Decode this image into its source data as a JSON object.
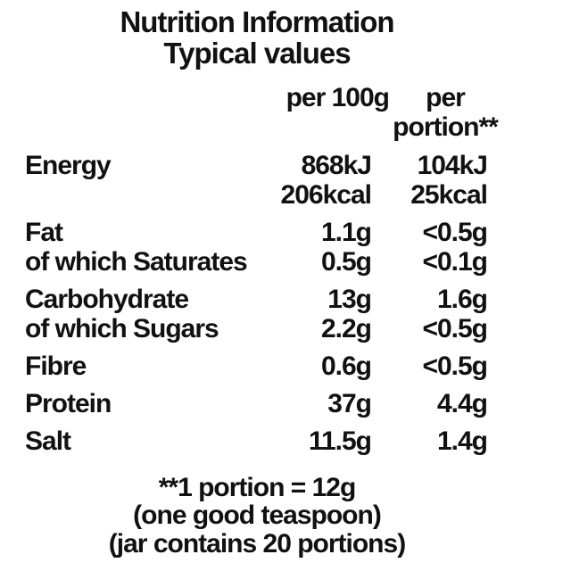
{
  "title": {
    "line1": "Nutrition Information",
    "line2": "Typical values"
  },
  "columns": {
    "per_100g": "per 100g",
    "per_portion_line1": "per",
    "per_portion_line2": "portion**"
  },
  "rows": [
    {
      "label": "Energy",
      "per_100g": "868kJ",
      "per_portion": "104kJ"
    },
    {
      "label": "",
      "per_100g": "206kcal",
      "per_portion": "25kcal"
    },
    {
      "label": "Fat",
      "per_100g": "1.1g",
      "per_portion": "<0.5g"
    },
    {
      "label": "of which Saturates",
      "per_100g": "0.5g",
      "per_portion": "<0.1g"
    },
    {
      "label": "Carbohydrate",
      "per_100g": "13g",
      "per_portion": "1.6g"
    },
    {
      "label": "of which Sugars",
      "per_100g": "2.2g",
      "per_portion": "<0.5g"
    },
    {
      "label": "Fibre",
      "per_100g": "0.6g",
      "per_portion": "<0.5g"
    },
    {
      "label": "Protein",
      "per_100g": "37g",
      "per_portion": "4.4g"
    },
    {
      "label": "Salt",
      "per_100g": "11.5g",
      "per_portion": "1.4g"
    }
  ],
  "footnote": {
    "line1": "**1 portion = 12g",
    "line2": "(one good teaspoon)",
    "line3": "(jar contains 20 portions)"
  },
  "colors": {
    "text": "#111111",
    "background": "#ffffff"
  }
}
